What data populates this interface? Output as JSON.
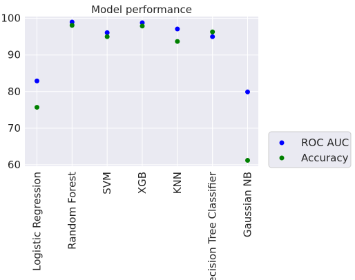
{
  "chart_data": {
    "type": "scatter",
    "title": "Model performance",
    "xlabel": "",
    "ylabel": "",
    "categories": [
      "Logistic Regression",
      "Random Forest",
      "SVM",
      "XGB",
      "KNN",
      "Decision Tree Classifier",
      "Gaussian NB"
    ],
    "series": [
      {
        "name": "ROC AUC",
        "color": "#0000ff",
        "values": [
          82.9,
          99.0,
          96.1,
          98.8,
          97.1,
          95.0,
          79.9
        ]
      },
      {
        "name": "Accuracy",
        "color": "#008000",
        "values": [
          75.7,
          98.1,
          95.0,
          97.9,
          93.7,
          96.3,
          61.2
        ]
      }
    ],
    "ylim": [
      59.6,
      100.5
    ],
    "yticks": [
      60,
      70,
      80,
      90,
      100
    ],
    "grid": true,
    "legend_position": "outside-right"
  }
}
